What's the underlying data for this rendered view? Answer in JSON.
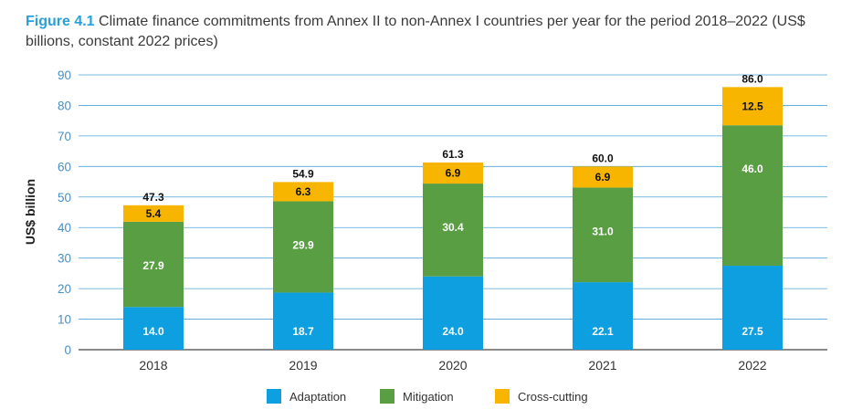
{
  "figure": {
    "label": "Figure 4.1",
    "caption": "Climate finance commitments from Annex II to non-Annex I countries per year for the period 2018–2022 (US$ billions, constant 2022 prices)"
  },
  "chart_data": {
    "type": "bar",
    "stacked": true,
    "categories": [
      "2018",
      "2019",
      "2020",
      "2021",
      "2022"
    ],
    "series": [
      {
        "name": "Adaptation",
        "color": "#0e9fe0",
        "label_color": "#ffffff",
        "values": [
          14.0,
          18.7,
          24.0,
          22.1,
          27.5
        ]
      },
      {
        "name": "Mitigation",
        "color": "#5a9e44",
        "label_color": "#ffffff",
        "values": [
          27.9,
          29.9,
          30.4,
          31.0,
          46.0
        ]
      },
      {
        "name": "Cross-cutting",
        "color": "#f7b500",
        "label_color": "#111111",
        "values": [
          5.4,
          6.3,
          6.9,
          6.9,
          12.5
        ]
      }
    ],
    "series_labels": [
      [
        "14.0",
        "18.7",
        "24.0",
        "22.1",
        "27.5"
      ],
      [
        "27.9",
        "29.9",
        "30.4",
        "31.0",
        "46.0"
      ],
      [
        "5.4",
        "6.3",
        "6.9",
        "6.9",
        "12.5"
      ]
    ],
    "totals": [
      47.3,
      54.9,
      61.3,
      60.0,
      86.0
    ],
    "total_labels": [
      "47.3",
      "54.9",
      "61.3",
      "60.0",
      "86.0"
    ],
    "ylabel": "US$ billion",
    "ylim": [
      0,
      90
    ],
    "yticks": [
      "0",
      "10",
      "20",
      "30",
      "40",
      "50",
      "60",
      "70",
      "80",
      "90"
    ],
    "grid": true,
    "legend_position": "bottom",
    "grid_color": "#4fa3d8"
  }
}
